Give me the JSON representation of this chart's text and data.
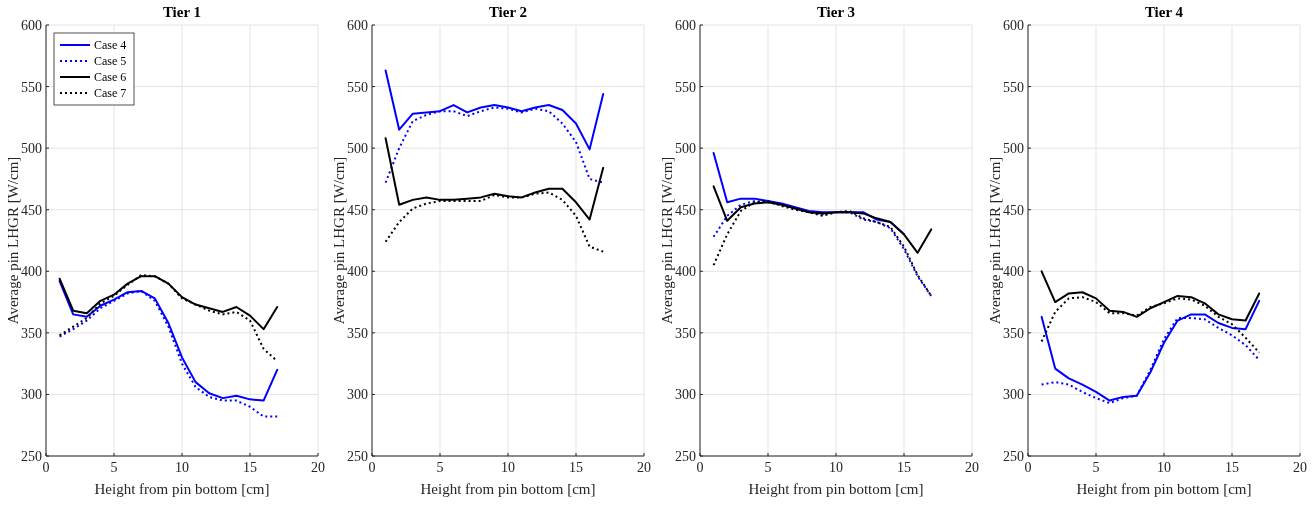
{
  "chart_data": [
    {
      "type": "line",
      "title": "Tier 1",
      "xlabel": "Height from pin bottom [cm]",
      "ylabel": "Average pin LHGR [W/cm]",
      "x": [
        1,
        2,
        3,
        4,
        5,
        6,
        7,
        8,
        9,
        10,
        11,
        12,
        13,
        14,
        15,
        16,
        17
      ],
      "xlim": [
        0,
        20
      ],
      "xticks": [
        0,
        5,
        10,
        15,
        20
      ],
      "ylim": [
        250,
        600
      ],
      "yticks": [
        250,
        300,
        350,
        400,
        450,
        500,
        550,
        600
      ],
      "grid": true,
      "legend": "top left",
      "marker": "none",
      "series": [
        {
          "name": "Case 4",
          "color": "#0000ff",
          "line_style": "solid",
          "values": [
            392,
            365,
            363,
            372,
            377,
            383,
            384,
            378,
            358,
            330,
            310,
            301,
            297,
            299,
            296,
            295,
            320
          ]
        },
        {
          "name": "Case 5",
          "color": "#0000ff",
          "line_style": "dotted",
          "values": [
            347,
            353,
            360,
            370,
            376,
            382,
            384,
            376,
            355,
            325,
            306,
            298,
            295,
            295,
            290,
            282,
            282
          ]
        },
        {
          "name": "Case 6",
          "color": "#000000",
          "line_style": "solid",
          "values": [
            394,
            368,
            366,
            376,
            381,
            390,
            396,
            396,
            390,
            379,
            373,
            370,
            367,
            371,
            364,
            353,
            371
          ]
        },
        {
          "name": "Case 7",
          "color": "#000000",
          "line_style": "dotted",
          "values": [
            348,
            355,
            362,
            374,
            380,
            389,
            397,
            396,
            390,
            378,
            373,
            368,
            365,
            367,
            360,
            337,
            327
          ]
        }
      ]
    },
    {
      "type": "line",
      "title": "Tier 2",
      "xlabel": "Height from pin bottom [cm]",
      "ylabel": "Average pin LHGR [W/cm]",
      "x": [
        1,
        2,
        3,
        4,
        5,
        6,
        7,
        8,
        9,
        10,
        11,
        12,
        13,
        14,
        15,
        16,
        17
      ],
      "xlim": [
        0,
        20
      ],
      "xticks": [
        0,
        5,
        10,
        15,
        20
      ],
      "ylim": [
        250,
        600
      ],
      "yticks": [
        250,
        300,
        350,
        400,
        450,
        500,
        550,
        600
      ],
      "grid": true,
      "marker": "none",
      "series": [
        {
          "color": "#0000ff",
          "line_style": "solid",
          "values": [
            563,
            515,
            528,
            529,
            530,
            535,
            529,
            533,
            535,
            533,
            530,
            533,
            535,
            531,
            520,
            499,
            544
          ]
        },
        {
          "color": "#0000ff",
          "line_style": "dotted",
          "values": [
            472,
            500,
            522,
            527,
            530,
            530,
            526,
            530,
            533,
            532,
            529,
            532,
            530,
            520,
            505,
            475,
            472
          ]
        },
        {
          "color": "#000000",
          "line_style": "solid",
          "values": [
            508,
            454,
            458,
            460,
            458,
            458,
            459,
            460,
            463,
            461,
            460,
            464,
            467,
            467,
            456,
            442,
            484
          ]
        },
        {
          "color": "#000000",
          "line_style": "dotted",
          "values": [
            424,
            440,
            451,
            455,
            457,
            457,
            457,
            457,
            462,
            460,
            460,
            463,
            464,
            458,
            445,
            420,
            416
          ]
        }
      ]
    },
    {
      "type": "line",
      "title": "Tier 3",
      "xlabel": "Height from pin bottom [cm]",
      "ylabel": "Average pin LHGR [W/cm]",
      "x": [
        1,
        2,
        3,
        4,
        5,
        6,
        7,
        8,
        9,
        10,
        11,
        12,
        13,
        14,
        15,
        16,
        17
      ],
      "xlim": [
        0,
        20
      ],
      "xticks": [
        0,
        5,
        10,
        15,
        20
      ],
      "ylim": [
        250,
        600
      ],
      "yticks": [
        250,
        300,
        350,
        400,
        450,
        500,
        550,
        600
      ],
      "grid": true,
      "marker": "none",
      "series": [
        {
          "color": "#0000ff",
          "line_style": "solid",
          "values": [
            496,
            456,
            459,
            459,
            457,
            455,
            452,
            449,
            448,
            448,
            448,
            448,
            442,
            440,
            430,
            null,
            null
          ]
        },
        {
          "color": "#0000ff",
          "line_style": "dotted",
          "values": [
            428,
            445,
            454,
            457,
            456,
            454,
            451,
            448,
            446,
            448,
            448,
            442,
            440,
            435,
            418,
            396,
            380
          ]
        },
        {
          "color": "#000000",
          "line_style": "solid",
          "values": [
            469,
            441,
            452,
            455,
            456,
            454,
            451,
            448,
            447,
            448,
            448,
            447,
            443,
            440,
            430,
            415,
            434
          ]
        },
        {
          "color": "#000000",
          "line_style": "dotted",
          "values": [
            405,
            430,
            449,
            456,
            457,
            453,
            450,
            448,
            445,
            448,
            449,
            443,
            440,
            436,
            420,
            397,
            380
          ]
        }
      ]
    },
    {
      "type": "line",
      "title": "Tier 4",
      "xlabel": "Height from pin bottom [cm]",
      "ylabel": "Average pin LHGR [W/cm]",
      "x": [
        1,
        2,
        3,
        4,
        5,
        6,
        7,
        8,
        9,
        10,
        11,
        12,
        13,
        14,
        15,
        16,
        17
      ],
      "xlim": [
        0,
        20
      ],
      "xticks": [
        0,
        5,
        10,
        15,
        20
      ],
      "ylim": [
        250,
        600
      ],
      "yticks": [
        250,
        300,
        350,
        400,
        450,
        500,
        550,
        600
      ],
      "grid": true,
      "marker": "none",
      "series": [
        {
          "color": "#0000ff",
          "line_style": "solid",
          "values": [
            363,
            321,
            313,
            308,
            302,
            295,
            298,
            299,
            318,
            342,
            360,
            365,
            365,
            358,
            354,
            353,
            376
          ]
        },
        {
          "color": "#0000ff",
          "line_style": "dotted",
          "values": [
            308,
            310,
            308,
            302,
            297,
            293,
            297,
            299,
            320,
            345,
            362,
            362,
            361,
            354,
            348,
            340,
            328
          ]
        },
        {
          "color": "#000000",
          "line_style": "solid",
          "values": [
            400,
            375,
            382,
            383,
            378,
            368,
            367,
            363,
            370,
            375,
            380,
            379,
            374,
            365,
            361,
            360,
            382
          ]
        },
        {
          "color": "#000000",
          "line_style": "dotted",
          "values": [
            343,
            367,
            378,
            379,
            375,
            366,
            366,
            364,
            371,
            374,
            378,
            377,
            372,
            363,
            357,
            346,
            334
          ]
        }
      ]
    }
  ]
}
